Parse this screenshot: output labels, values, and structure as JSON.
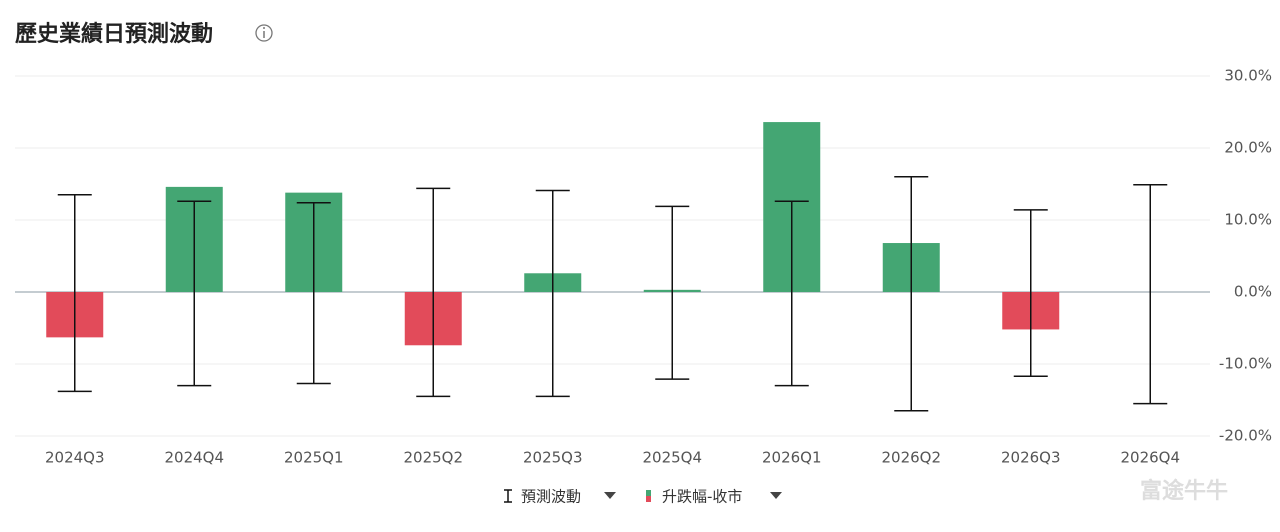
{
  "title": "歷史業績日預測波動",
  "watermark": "富途牛牛",
  "chart_data": {
    "type": "bar",
    "categories": [
      "2024Q3",
      "2024Q4",
      "2025Q1",
      "2025Q2",
      "2025Q3",
      "2025Q4",
      "2026Q1",
      "2026Q2",
      "2026Q3",
      "2026Q4"
    ],
    "series": [
      {
        "name": "預測波動",
        "color": "#111111",
        "high": [
          13.5,
          12.6,
          12.4,
          14.4,
          14.1,
          11.9,
          12.6,
          16.0,
          11.4,
          14.9
        ],
        "low": [
          -13.8,
          -13.0,
          -12.7,
          -14.5,
          -14.5,
          -12.1,
          -13.0,
          -16.5,
          -11.7,
          -15.5
        ]
      },
      {
        "name": "升跌幅-收市",
        "color": "#44a673",
        "negative_color": "#e24b5a",
        "values": [
          -6.3,
          14.6,
          13.8,
          -7.4,
          2.6,
          0.3,
          23.6,
          6.8,
          -5.2,
          null
        ]
      }
    ],
    "ylim": [
      -20,
      30
    ],
    "yticks": [
      {
        "value": -20,
        "label": "-20.0%"
      },
      {
        "value": -10,
        "label": "-10.0%"
      },
      {
        "value": 0,
        "label": "0.0%"
      },
      {
        "value": 10,
        "label": "10.0%"
      },
      {
        "value": 20,
        "label": "20.0%"
      },
      {
        "value": 30,
        "label": "30.0%"
      }
    ],
    "grid": true
  }
}
